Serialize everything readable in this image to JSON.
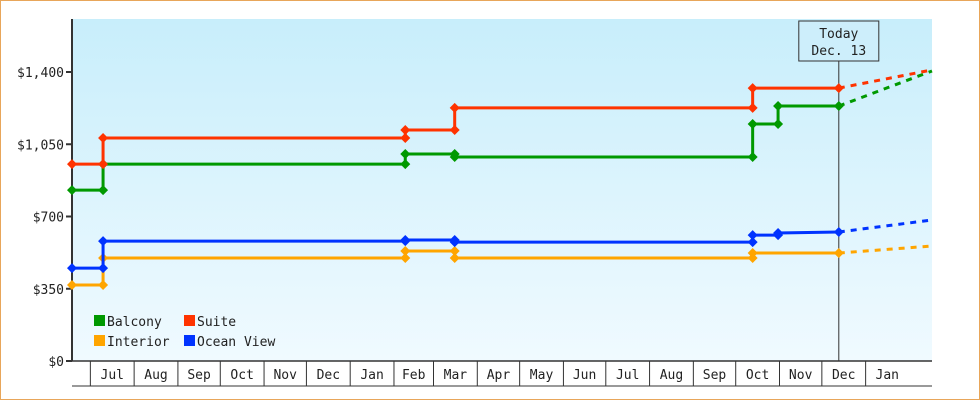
{
  "chart_data": {
    "type": "line",
    "title": "",
    "xlabel": "",
    "ylabel": "",
    "ylim": [
      0,
      1680
    ],
    "x_range": [
      "2012-06-18",
      "2014-02-17"
    ],
    "y_ticks": [
      "$0",
      "$350",
      "$700",
      "$1,050",
      "$1,400"
    ],
    "y_tick_values": [
      0,
      350,
      700,
      1050,
      1400
    ],
    "x_ticks": [
      "Jul",
      "Aug",
      "Sep",
      "Oct",
      "Nov",
      "Dec",
      "Jan",
      "Feb",
      "Mar",
      "Apr",
      "May",
      "Jun",
      "Jul",
      "Aug",
      "Sep",
      "Oct",
      "Nov",
      "Dec",
      "Jan"
    ],
    "x_tick_starts": [
      "2012-07-01",
      "2012-08-01",
      "2012-09-01",
      "2012-10-01",
      "2012-11-01",
      "2012-12-01",
      "2013-01-01",
      "2013-02-01",
      "2013-03-01",
      "2013-04-01",
      "2013-05-01",
      "2013-06-01",
      "2013-07-01",
      "2013-08-01",
      "2013-09-01",
      "2013-10-01",
      "2013-11-01",
      "2013-12-01",
      "2014-01-01"
    ],
    "grid": false,
    "legend_position": "bottom-left",
    "today": {
      "label_line1": "Today",
      "label_line2": "Dec. 13",
      "date": "2013-12-13"
    },
    "series": [
      {
        "name": "Balcony",
        "color": "#009900",
        "points": [
          [
            "2012-06-18",
            828
          ],
          [
            "2012-07-10",
            828
          ],
          [
            "2012-07-10",
            954
          ],
          [
            "2013-02-09",
            954
          ],
          [
            "2013-02-09",
            1003
          ],
          [
            "2013-03-16",
            1003
          ],
          [
            "2013-03-16",
            988
          ],
          [
            "2013-10-13",
            988
          ],
          [
            "2013-10-13",
            1148
          ],
          [
            "2013-10-31",
            1148
          ],
          [
            "2013-10-31",
            1235
          ],
          [
            "2013-12-13",
            1235
          ]
        ],
        "projection": [
          [
            "2013-12-13",
            1235
          ],
          [
            "2014-02-17",
            1405
          ]
        ]
      },
      {
        "name": "Suite",
        "color": "#ff3300",
        "points": [
          [
            "2012-06-18",
            954
          ],
          [
            "2012-07-10",
            954
          ],
          [
            "2012-07-10",
            1080
          ],
          [
            "2013-02-09",
            1080
          ],
          [
            "2013-02-09",
            1119
          ],
          [
            "2013-03-16",
            1119
          ],
          [
            "2013-03-16",
            1226
          ],
          [
            "2013-10-13",
            1226
          ],
          [
            "2013-10-13",
            1322
          ],
          [
            "2013-12-13",
            1322
          ]
        ],
        "projection": [
          [
            "2013-12-13",
            1322
          ],
          [
            "2014-02-17",
            1410
          ]
        ]
      },
      {
        "name": "Interior",
        "color": "#ffa500",
        "points": [
          [
            "2012-06-18",
            368
          ],
          [
            "2012-07-10",
            368
          ],
          [
            "2012-07-10",
            499
          ],
          [
            "2013-02-09",
            499
          ],
          [
            "2013-02-09",
            533
          ],
          [
            "2013-03-16",
            533
          ],
          [
            "2013-03-16",
            499
          ],
          [
            "2013-10-13",
            499
          ],
          [
            "2013-10-13",
            523
          ],
          [
            "2013-12-13",
            523
          ]
        ],
        "projection": [
          [
            "2013-12-13",
            523
          ],
          [
            "2014-02-17",
            557
          ]
        ]
      },
      {
        "name": "Ocean View",
        "color": "#0033ff",
        "points": [
          [
            "2012-06-18",
            450
          ],
          [
            "2012-07-10",
            450
          ],
          [
            "2012-07-10",
            581
          ],
          [
            "2013-02-09",
            581
          ],
          [
            "2013-02-09",
            586
          ],
          [
            "2013-03-16",
            586
          ],
          [
            "2013-03-16",
            576
          ],
          [
            "2013-10-13",
            576
          ],
          [
            "2013-10-13",
            610
          ],
          [
            "2013-10-31",
            610
          ],
          [
            "2013-10-31",
            620
          ],
          [
            "2013-12-13",
            625
          ]
        ],
        "projection": [
          [
            "2013-12-13",
            625
          ],
          [
            "2014-02-17",
            683
          ]
        ]
      }
    ],
    "legend": [
      {
        "label": "Balcony",
        "color": "#009900"
      },
      {
        "label": "Suite",
        "color": "#ff3300"
      },
      {
        "label": "Interior",
        "color": "#ffa500"
      },
      {
        "label": "Ocean View",
        "color": "#0033ff"
      }
    ]
  }
}
